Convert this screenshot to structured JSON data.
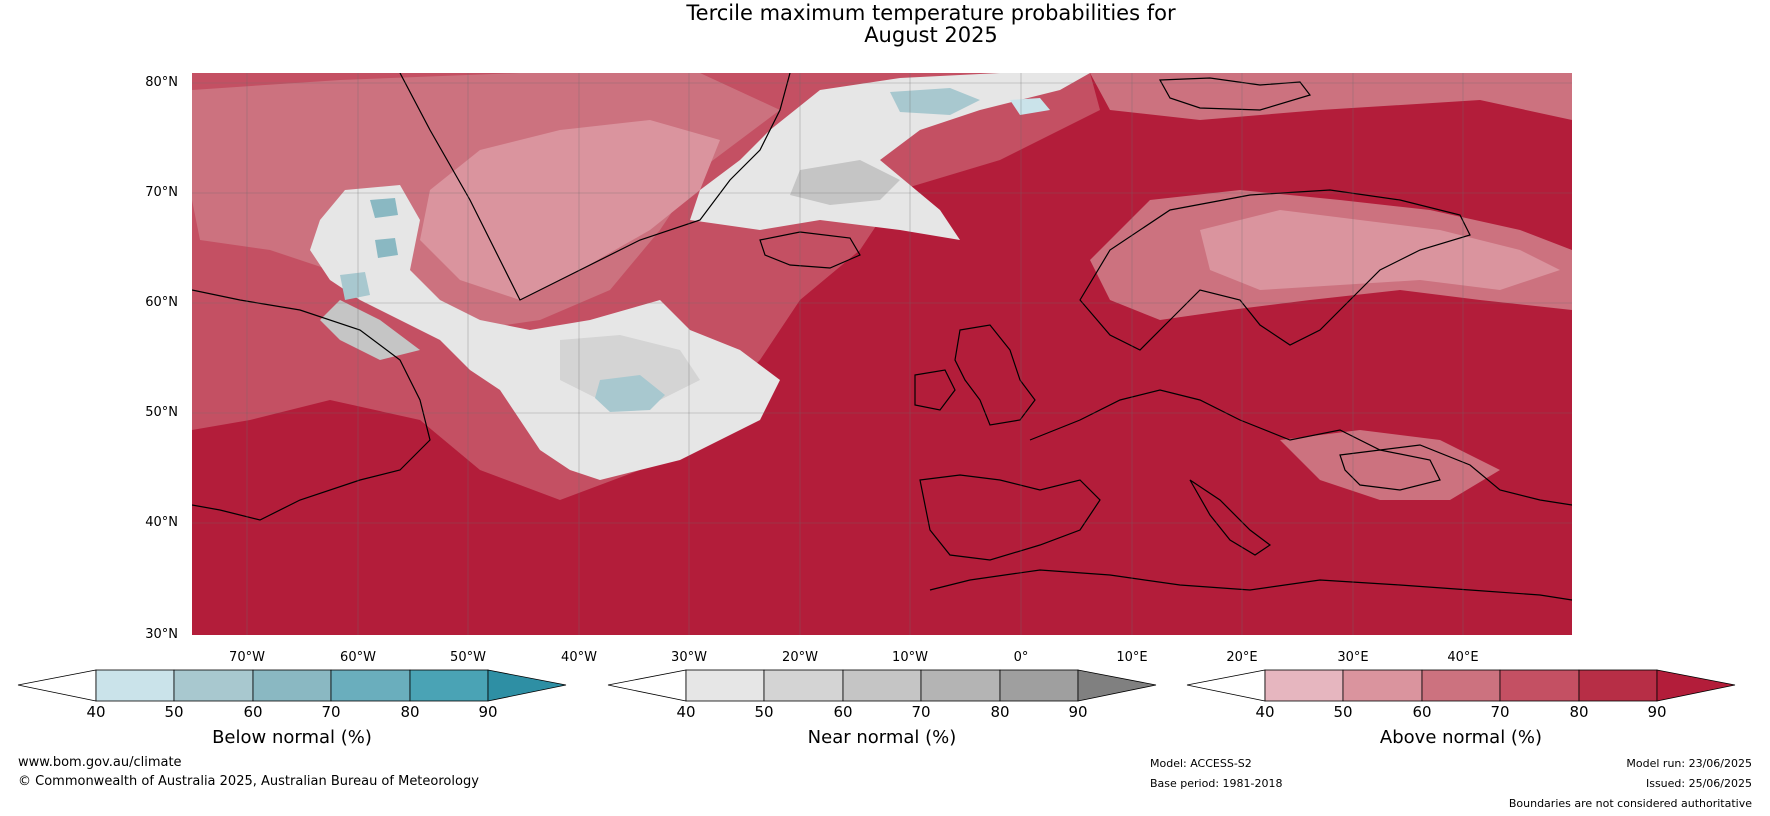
{
  "title": {
    "line1": "Tercile maximum temperature probabilities for",
    "line2": "August 2025"
  },
  "map": {
    "latitudes": [
      "80°N",
      "70°N",
      "60°N",
      "50°N",
      "40°N",
      "30°N"
    ],
    "longitudes": [
      "70°W",
      "60°W",
      "50°W",
      "40°W",
      "30°W",
      "20°W",
      "10°W",
      "0°",
      "10°E",
      "20°E",
      "30°E",
      "40°E"
    ],
    "base_color": "#b31d3a",
    "land_outline_color": "#000000",
    "border_color": "#808080"
  },
  "colorbars": [
    {
      "label": "Below normal (%)",
      "ticks": [
        "40",
        "50",
        "60",
        "70",
        "80",
        "90"
      ],
      "colors": [
        "#ffffff",
        "#cae3ea",
        "#a8c8cf",
        "#8ab8c2",
        "#6aaebd",
        "#4aa3b5",
        "#2e8fa4"
      ]
    },
    {
      "label": "Near normal (%)",
      "ticks": [
        "40",
        "50",
        "60",
        "70",
        "80",
        "90"
      ],
      "colors": [
        "#ffffff",
        "#e6e6e6",
        "#d4d4d4",
        "#c5c5c5",
        "#b4b4b4",
        "#9f9f9f",
        "#808080"
      ]
    },
    {
      "label": "Above normal (%)",
      "ticks": [
        "40",
        "50",
        "60",
        "70",
        "80",
        "90"
      ],
      "colors": [
        "#ffffff",
        "#e6b6bf",
        "#da949e",
        "#cc727f",
        "#c45063",
        "#b72e46",
        "#b31d3a"
      ]
    }
  ],
  "footer": {
    "website": "www.bom.gov.au/climate",
    "copyright": "© Commonwealth of Australia 2025, Australian Bureau of Meteorology",
    "model": "Model: ACCESS-S2",
    "base_period": "Base period: 1981-2018",
    "model_run": "Model run: 23/06/2025",
    "issued": "Issued: 25/06/2025",
    "disclaimer": "Boundaries are not considered authoritative"
  }
}
